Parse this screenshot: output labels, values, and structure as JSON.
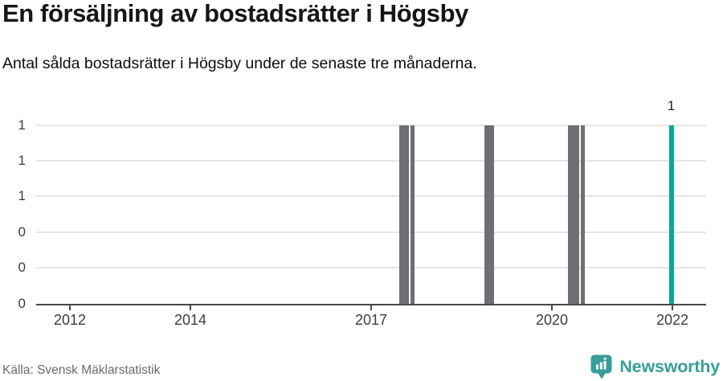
{
  "header": {
    "title": "En försäljning av bostadsrätter i Högsby",
    "subtitle": "Antal sålda bostadsrätter i Högsby under de senaste tre månaderna."
  },
  "footer": {
    "source": "Källa: Svensk Mäklarstatistik",
    "brand": "Newsworthy",
    "brand_color": "#379e99",
    "logo_icon": "bar-chart-speech-bubble-icon"
  },
  "chart_data": {
    "type": "bar",
    "title": "En försäljning av bostadsrätter i Högsby",
    "subtitle": "Antal sålda bostadsrätter i Högsby under de senaste tre månaderna.",
    "grid": true,
    "legend": false,
    "x_axis": {
      "range": [
        2011.44,
        2022.56
      ],
      "ticks": [
        2012,
        2014,
        2017,
        2020,
        2022
      ]
    },
    "y_axis": {
      "range": [
        0,
        1
      ],
      "gridline_values": [
        0.2,
        0.4,
        0.6,
        0.8,
        1.0
      ],
      "tick_labels": [
        {
          "value": 0.0,
          "label": "0"
        },
        {
          "value": 0.2,
          "label": "0"
        },
        {
          "value": 0.4,
          "label": "0"
        },
        {
          "value": 0.6,
          "label": "1"
        },
        {
          "value": 0.8,
          "label": "1"
        },
        {
          "value": 1.0,
          "label": "1"
        }
      ]
    },
    "bars": [
      {
        "x_start": 2017.46,
        "x_end": 2017.62,
        "value": 1,
        "series": "past"
      },
      {
        "x_start": 2017.65,
        "x_end": 2017.72,
        "value": 1,
        "series": "past"
      },
      {
        "x_start": 2018.88,
        "x_end": 2019.04,
        "value": 1,
        "series": "past"
      },
      {
        "x_start": 2020.26,
        "x_end": 2020.45,
        "value": 1,
        "series": "past"
      },
      {
        "x_start": 2020.48,
        "x_end": 2020.55,
        "value": 1,
        "series": "past"
      },
      {
        "x_start": 2021.94,
        "x_end": 2022.02,
        "value": 1,
        "series": "latest",
        "label": "1"
      }
    ],
    "colors": {
      "past": "#6e6e75",
      "latest": "#0aa69c"
    }
  }
}
